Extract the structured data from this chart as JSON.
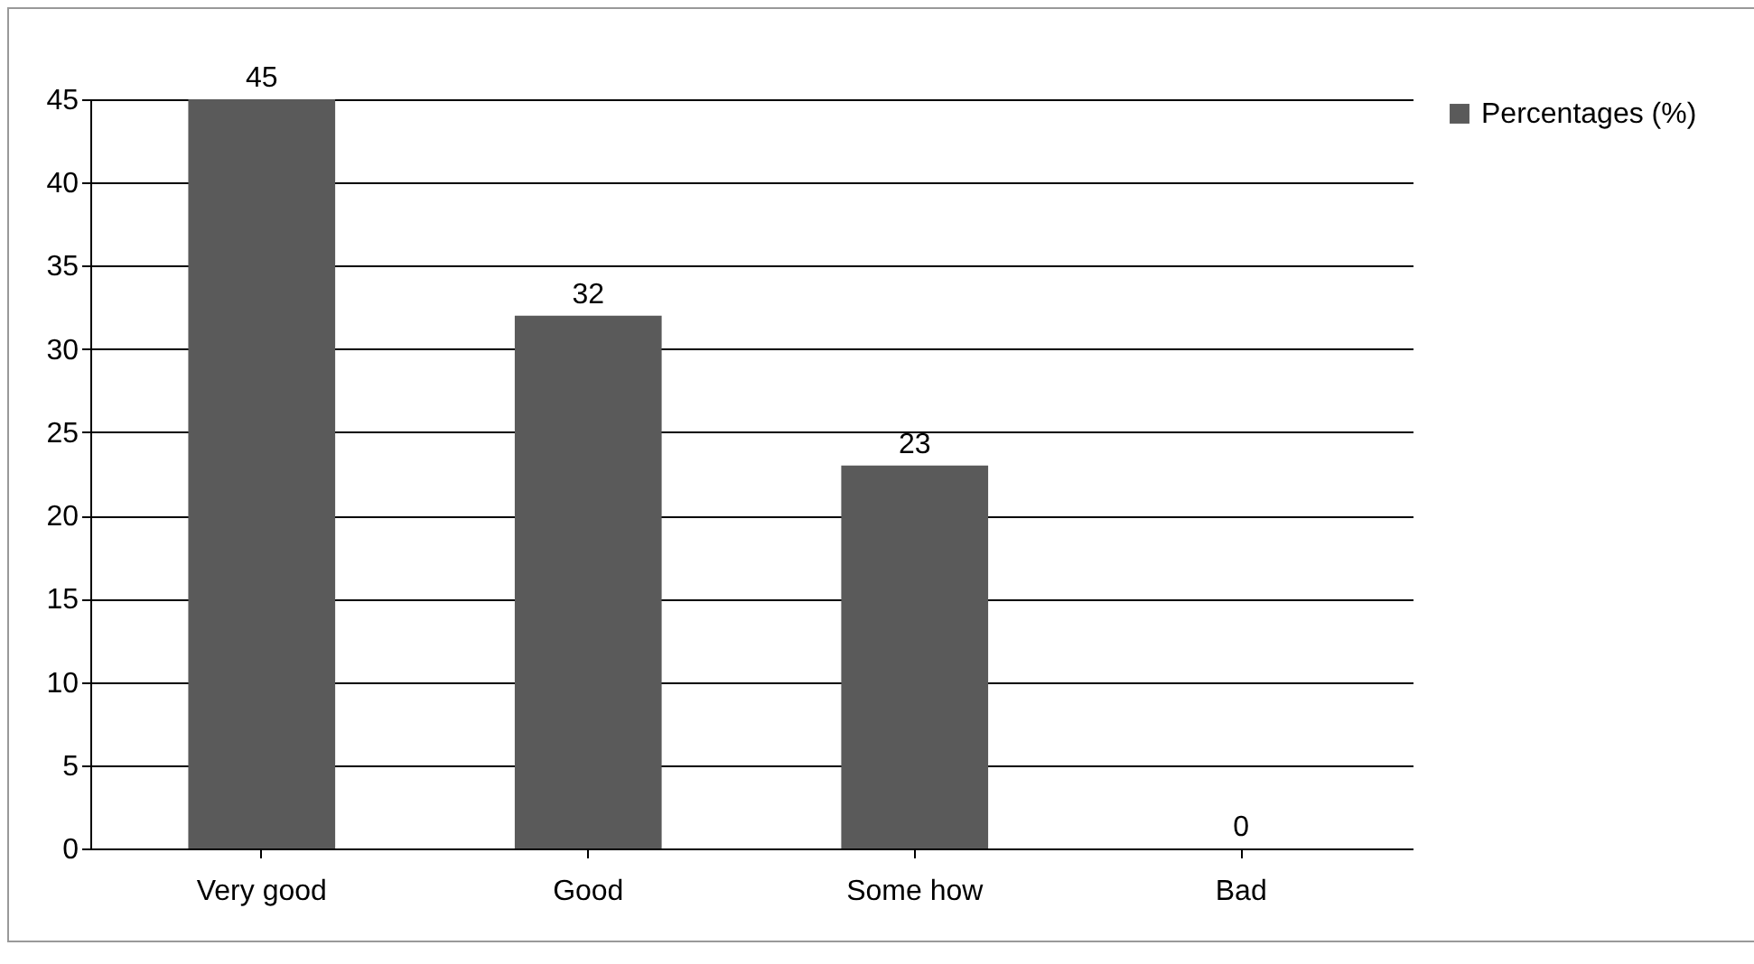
{
  "chart_data": {
    "type": "bar",
    "categories": [
      "Very good",
      "Good",
      "Some how",
      "Bad"
    ],
    "series": [
      {
        "name": "Percentages (%)",
        "color": "#5a5a5a",
        "values": [
          45,
          32,
          23,
          0
        ]
      }
    ],
    "ylim": [
      0,
      45
    ],
    "yticks": [
      0,
      5,
      10,
      15,
      20,
      25,
      30,
      35,
      40,
      45
    ],
    "grid": "y",
    "legend": "right",
    "data_labels": true
  }
}
